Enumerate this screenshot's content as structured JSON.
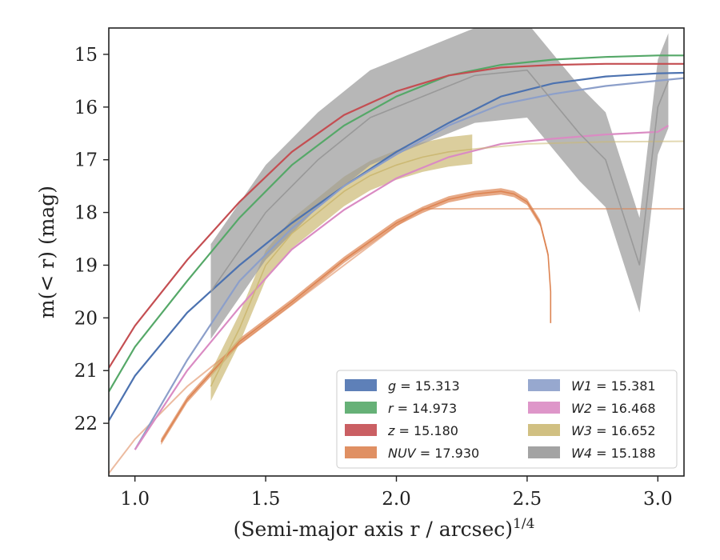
{
  "chart_data": {
    "type": "line",
    "xlabel": "(Semi-major axis r / arcsec)",
    "xlabel_exponent": "1/4",
    "ylabel": "m(< r) (mag)",
    "xlim": [
      0.9,
      3.1
    ],
    "ylim": [
      23.0,
      14.5
    ],
    "y_inverted": true,
    "x_ticks": [
      1.0,
      1.5,
      2.0,
      2.5,
      3.0
    ],
    "x_tick_labels": [
      "1.0",
      "1.5",
      "2.0",
      "2.5",
      "3.0"
    ],
    "y_ticks": [
      15,
      16,
      17,
      18,
      19,
      20,
      21,
      22
    ],
    "y_tick_labels": [
      "15",
      "16",
      "17",
      "18",
      "19",
      "20",
      "21",
      "22"
    ],
    "grid": false,
    "legend_position": "lower-right",
    "series": [
      {
        "name": "g",
        "label_value": "15.313",
        "color": "#4c72b0",
        "band": false,
        "points": [
          [
            0.9,
            21.95
          ],
          [
            1.0,
            21.1
          ],
          [
            1.2,
            19.9
          ],
          [
            1.4,
            19.0
          ],
          [
            1.6,
            18.2
          ],
          [
            1.8,
            17.5
          ],
          [
            2.0,
            16.85
          ],
          [
            2.2,
            16.3
          ],
          [
            2.4,
            15.8
          ],
          [
            2.6,
            15.55
          ],
          [
            2.8,
            15.42
          ],
          [
            3.0,
            15.36
          ],
          [
            3.1,
            15.35
          ]
        ]
      },
      {
        "name": "r",
        "label_value": "14.973",
        "color": "#55a868",
        "band": false,
        "points": [
          [
            0.9,
            21.4
          ],
          [
            1.0,
            20.55
          ],
          [
            1.2,
            19.3
          ],
          [
            1.4,
            18.1
          ],
          [
            1.6,
            17.1
          ],
          [
            1.8,
            16.35
          ],
          [
            2.0,
            15.8
          ],
          [
            2.2,
            15.4
          ],
          [
            2.4,
            15.2
          ],
          [
            2.6,
            15.1
          ],
          [
            2.8,
            15.05
          ],
          [
            3.0,
            15.02
          ],
          [
            3.1,
            15.02
          ]
        ]
      },
      {
        "name": "z",
        "label_value": "15.180",
        "color": "#c44e52",
        "band": false,
        "points": [
          [
            0.9,
            20.95
          ],
          [
            1.0,
            20.15
          ],
          [
            1.2,
            18.9
          ],
          [
            1.4,
            17.8
          ],
          [
            1.6,
            16.85
          ],
          [
            1.8,
            16.15
          ],
          [
            2.0,
            15.7
          ],
          [
            2.2,
            15.4
          ],
          [
            2.4,
            15.25
          ],
          [
            2.6,
            15.2
          ],
          [
            2.8,
            15.18
          ],
          [
            3.0,
            15.18
          ],
          [
            3.1,
            15.18
          ]
        ]
      },
      {
        "name": "NUV",
        "label_value": "17.930",
        "color": "#dd8452",
        "band": true,
        "points": [
          [
            1.1,
            22.35
          ],
          [
            1.2,
            21.55
          ],
          [
            1.4,
            20.45
          ],
          [
            1.6,
            19.7
          ],
          [
            1.8,
            18.9
          ],
          [
            2.0,
            18.2
          ],
          [
            2.1,
            17.95
          ],
          [
            2.2,
            17.75
          ],
          [
            2.3,
            17.65
          ],
          [
            2.4,
            17.6
          ],
          [
            2.45,
            17.65
          ],
          [
            2.5,
            17.8
          ],
          [
            2.55,
            18.2
          ],
          [
            2.58,
            18.8
          ],
          [
            2.59,
            19.5
          ],
          [
            2.59,
            20.1
          ]
        ],
        "extension": [
          [
            0.9,
            22.95
          ],
          [
            1.0,
            22.3
          ],
          [
            1.2,
            21.3
          ],
          [
            1.4,
            20.5
          ],
          [
            1.6,
            19.75
          ],
          [
            1.8,
            19.0
          ],
          [
            2.0,
            18.25
          ],
          [
            2.1,
            17.93
          ],
          [
            3.1,
            17.93
          ]
        ]
      },
      {
        "name": "W1",
        "label_value": "15.381",
        "color": "#8c9fca",
        "band": false,
        "points": [
          [
            1.0,
            22.5
          ],
          [
            1.2,
            20.8
          ],
          [
            1.4,
            19.3
          ],
          [
            1.6,
            18.3
          ],
          [
            1.8,
            17.5
          ],
          [
            2.0,
            16.9
          ],
          [
            2.2,
            16.35
          ],
          [
            2.4,
            15.95
          ],
          [
            2.6,
            15.75
          ],
          [
            2.8,
            15.6
          ],
          [
            3.0,
            15.5
          ],
          [
            3.1,
            15.45
          ]
        ]
      },
      {
        "name": "W2",
        "label_value": "16.468",
        "color": "#da8bc3",
        "band": false,
        "points": [
          [
            1.0,
            22.5
          ],
          [
            1.2,
            21.0
          ],
          [
            1.4,
            19.8
          ],
          [
            1.6,
            18.7
          ],
          [
            1.8,
            17.95
          ],
          [
            2.0,
            17.35
          ],
          [
            2.2,
            16.95
          ],
          [
            2.4,
            16.7
          ],
          [
            2.6,
            16.6
          ],
          [
            2.8,
            16.52
          ],
          [
            3.0,
            16.47
          ],
          [
            3.04,
            16.35
          ]
        ]
      },
      {
        "name": "W3",
        "label_value": "16.652",
        "color": "#ccb974",
        "band": true,
        "points": [
          [
            1.29,
            21.3
          ],
          [
            1.4,
            20.2
          ],
          [
            1.5,
            19.0
          ],
          [
            1.6,
            18.4
          ],
          [
            1.7,
            18.0
          ],
          [
            1.8,
            17.6
          ],
          [
            1.9,
            17.3
          ],
          [
            2.0,
            17.1
          ],
          [
            2.1,
            16.95
          ],
          [
            2.2,
            16.85
          ],
          [
            2.29,
            16.8
          ]
        ],
        "extension": [
          [
            2.29,
            16.8
          ],
          [
            2.5,
            16.7
          ],
          [
            2.8,
            16.66
          ],
          [
            3.1,
            16.65
          ]
        ]
      },
      {
        "name": "W4",
        "label_value": "15.188",
        "color": "#999999",
        "band": true,
        "points": [
          [
            1.29,
            19.5
          ],
          [
            1.5,
            18.0
          ],
          [
            1.7,
            17.0
          ],
          [
            1.9,
            16.2
          ],
          [
            2.1,
            15.8
          ],
          [
            2.3,
            15.4
          ],
          [
            2.5,
            15.3
          ],
          [
            2.7,
            16.5
          ],
          [
            2.8,
            17.0
          ],
          [
            2.93,
            19.0
          ],
          [
            3.0,
            16.0
          ],
          [
            3.04,
            15.5
          ]
        ]
      }
    ]
  }
}
